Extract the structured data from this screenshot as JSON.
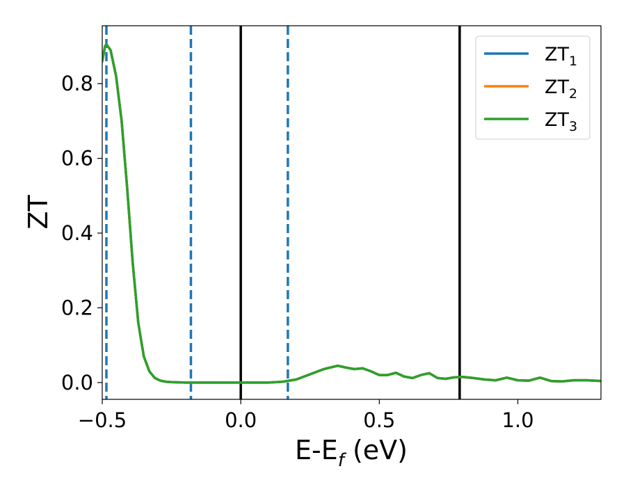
{
  "chart_data": {
    "type": "line",
    "xlabel": {
      "main": "E-E",
      "sub": "f",
      "suffix": " (eV)"
    },
    "ylabel": "ZT",
    "xlim": [
      -0.5,
      1.3
    ],
    "ylim": [
      -0.045,
      0.955
    ],
    "xticks": [
      -0.5,
      0.0,
      0.5,
      1.0
    ],
    "xtick_labels": [
      "−0.5",
      "0.0",
      "0.5",
      "1.0"
    ],
    "yticks": [
      0.0,
      0.2,
      0.4,
      0.6,
      0.8
    ],
    "ytick_labels": [
      "0.0",
      "0.2",
      "0.4",
      "0.6",
      "0.8"
    ],
    "grid": false,
    "legend_position": "top-right",
    "vlines": [
      {
        "x": -0.485,
        "style": "dashed",
        "color": "#1f77b4"
      },
      {
        "x": -0.18,
        "style": "dashed",
        "color": "#1f77b4"
      },
      {
        "x": 0.17,
        "style": "dashed",
        "color": "#1f77b4"
      },
      {
        "x": 0.0,
        "style": "solid",
        "color": "#000000"
      },
      {
        "x": 0.79,
        "style": "solid",
        "color": "#000000"
      }
    ],
    "series": [
      {
        "name": "ZT",
        "sub": "1",
        "color": "#1f77b4",
        "x": [
          -0.5,
          -0.49,
          -0.485,
          -0.47,
          -0.45,
          -0.43,
          -0.41,
          -0.39,
          -0.37,
          -0.35,
          -0.33,
          -0.31,
          -0.29,
          -0.27,
          -0.25,
          -0.2,
          -0.1,
          0.0,
          0.1,
          0.15,
          0.2,
          0.25,
          0.3,
          0.35,
          0.38,
          0.41,
          0.44,
          0.47,
          0.5,
          0.53,
          0.56,
          0.59,
          0.62,
          0.65,
          0.68,
          0.71,
          0.74,
          0.77,
          0.8,
          0.84,
          0.88,
          0.92,
          0.96,
          1.0,
          1.04,
          1.08,
          1.12,
          1.16,
          1.2,
          1.25,
          1.3
        ],
        "values": [
          0.86,
          0.9,
          0.905,
          0.89,
          0.82,
          0.7,
          0.52,
          0.32,
          0.16,
          0.07,
          0.03,
          0.012,
          0.005,
          0.002,
          0.001,
          0.0,
          0.0,
          0.0,
          0.0,
          0.002,
          0.008,
          0.022,
          0.036,
          0.045,
          0.04,
          0.036,
          0.038,
          0.03,
          0.02,
          0.02,
          0.026,
          0.016,
          0.012,
          0.02,
          0.025,
          0.012,
          0.01,
          0.014,
          0.015,
          0.012,
          0.008,
          0.006,
          0.013,
          0.006,
          0.005,
          0.013,
          0.004,
          0.003,
          0.006,
          0.006,
          0.004
        ]
      },
      {
        "name": "ZT",
        "sub": "2",
        "color": "#ff7f0e",
        "x": [
          -0.5,
          -0.49,
          -0.485,
          -0.47,
          -0.45,
          -0.43,
          -0.41,
          -0.39,
          -0.37,
          -0.35,
          -0.33,
          -0.31,
          -0.29,
          -0.27,
          -0.25,
          -0.2,
          -0.1,
          0.0,
          0.1,
          0.15,
          0.2,
          0.25,
          0.3,
          0.35,
          0.38,
          0.41,
          0.44,
          0.47,
          0.5,
          0.53,
          0.56,
          0.59,
          0.62,
          0.65,
          0.68,
          0.71,
          0.74,
          0.77,
          0.8,
          0.84,
          0.88,
          0.92,
          0.96,
          1.0,
          1.04,
          1.08,
          1.12,
          1.16,
          1.2,
          1.25,
          1.3
        ],
        "values": [
          0.86,
          0.9,
          0.905,
          0.89,
          0.82,
          0.7,
          0.52,
          0.32,
          0.16,
          0.07,
          0.03,
          0.012,
          0.005,
          0.002,
          0.001,
          0.0,
          0.0,
          0.0,
          0.0,
          0.002,
          0.008,
          0.022,
          0.036,
          0.045,
          0.04,
          0.036,
          0.038,
          0.03,
          0.02,
          0.02,
          0.026,
          0.016,
          0.012,
          0.02,
          0.025,
          0.012,
          0.01,
          0.014,
          0.015,
          0.012,
          0.008,
          0.006,
          0.013,
          0.006,
          0.005,
          0.013,
          0.004,
          0.003,
          0.006,
          0.006,
          0.004
        ]
      },
      {
        "name": "ZT",
        "sub": "3",
        "color": "#2ca02c",
        "x": [
          -0.5,
          -0.49,
          -0.485,
          -0.47,
          -0.45,
          -0.43,
          -0.41,
          -0.39,
          -0.37,
          -0.35,
          -0.33,
          -0.31,
          -0.29,
          -0.27,
          -0.25,
          -0.2,
          -0.1,
          0.0,
          0.1,
          0.15,
          0.2,
          0.25,
          0.3,
          0.35,
          0.38,
          0.41,
          0.44,
          0.47,
          0.5,
          0.53,
          0.56,
          0.59,
          0.62,
          0.65,
          0.68,
          0.71,
          0.74,
          0.77,
          0.8,
          0.84,
          0.88,
          0.92,
          0.96,
          1.0,
          1.04,
          1.08,
          1.12,
          1.16,
          1.2,
          1.25,
          1.3
        ],
        "values": [
          0.86,
          0.9,
          0.905,
          0.89,
          0.82,
          0.7,
          0.52,
          0.32,
          0.16,
          0.07,
          0.03,
          0.012,
          0.005,
          0.002,
          0.001,
          0.0,
          0.0,
          0.0,
          0.0,
          0.002,
          0.008,
          0.022,
          0.036,
          0.045,
          0.04,
          0.036,
          0.038,
          0.03,
          0.02,
          0.02,
          0.026,
          0.016,
          0.012,
          0.02,
          0.025,
          0.012,
          0.01,
          0.014,
          0.015,
          0.012,
          0.008,
          0.006,
          0.013,
          0.006,
          0.005,
          0.013,
          0.004,
          0.003,
          0.006,
          0.006,
          0.004
        ]
      }
    ]
  }
}
